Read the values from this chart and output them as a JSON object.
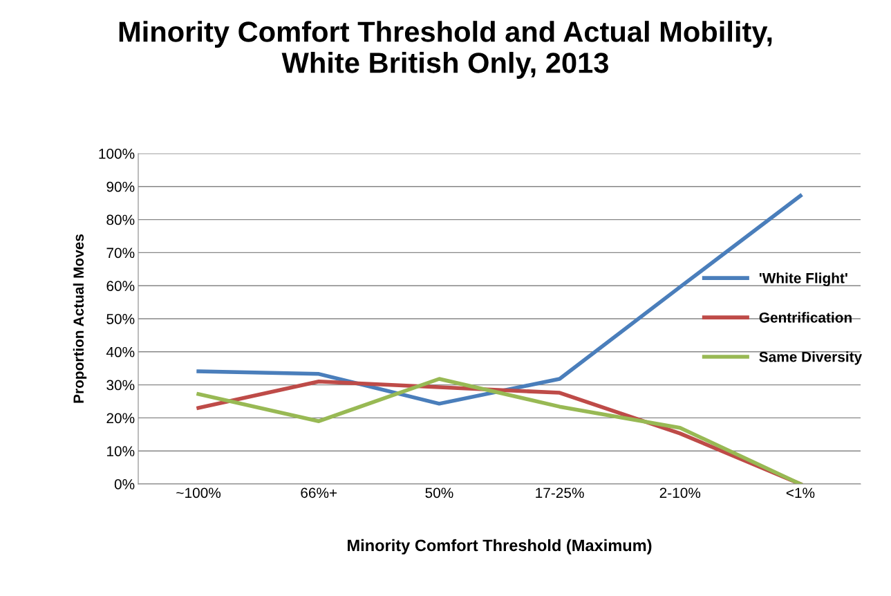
{
  "chart_data": {
    "type": "line",
    "title": "Minority Comfort Threshold and Actual Mobility,\nWhite British Only, 2013",
    "xlabel": "Minority Comfort Threshold (Maximum)",
    "ylabel": "Proportion Actual Moves",
    "categories": [
      "~100%",
      "66%+",
      "50%",
      "17-25%",
      "2-10%",
      "<1%"
    ],
    "series": [
      {
        "name": "'White Flight'",
        "color": "#4a7ebb",
        "values": [
          34.1,
          33.3,
          24.3,
          31.8,
          59.6,
          87.2
        ]
      },
      {
        "name": "Gentrification",
        "color": "#be4b48",
        "values": [
          23.0,
          31.0,
          29.3,
          27.6,
          15.3,
          0
        ]
      },
      {
        "name": "Same Diversity",
        "color": "#98b954",
        "values": [
          27.2,
          19.0,
          31.8,
          23.4,
          17.0,
          0
        ]
      }
    ],
    "ylim": [
      0,
      100
    ],
    "yticks": [
      {
        "value": 0,
        "label": "0%"
      },
      {
        "value": 10,
        "label": "10%"
      },
      {
        "value": 20,
        "label": "20%"
      },
      {
        "value": 30,
        "label": "30%"
      },
      {
        "value": 40,
        "label": "40%"
      },
      {
        "value": 50,
        "label": "50%"
      },
      {
        "value": 60,
        "label": "60%"
      },
      {
        "value": 70,
        "label": "70%"
      },
      {
        "value": 80,
        "label": "80%"
      },
      {
        "value": 90,
        "label": "90%"
      },
      {
        "value": 100,
        "label": "100%"
      }
    ],
    "grid": "y",
    "legend": "right",
    "marker": "none",
    "line_style": "solid"
  }
}
